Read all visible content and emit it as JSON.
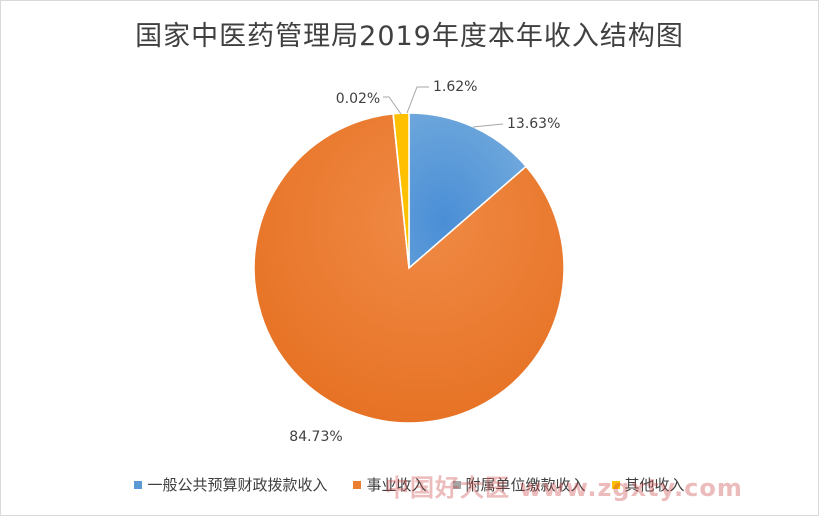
{
  "chart_data": {
    "type": "pie",
    "title": "国家中医药管理局2019年度本年收入结构图",
    "slices": [
      {
        "name": "一般公共预算财政拨款收入",
        "value": 13.63,
        "label": "13.63%",
        "color": "#5b9bd5"
      },
      {
        "name": "事业收入",
        "value": 84.73,
        "label": "84.73%",
        "color": "#ed7d31"
      },
      {
        "name": "附属单位缴款收入",
        "value": 0.02,
        "label": "0.02%",
        "color": "#a5a5a5"
      },
      {
        "name": "其他收入",
        "value": 1.62,
        "label": "1.62%",
        "color": "#ffc000"
      }
    ],
    "legend_position": "bottom"
  },
  "watermark": "中国好大医 www.zgxty.com"
}
